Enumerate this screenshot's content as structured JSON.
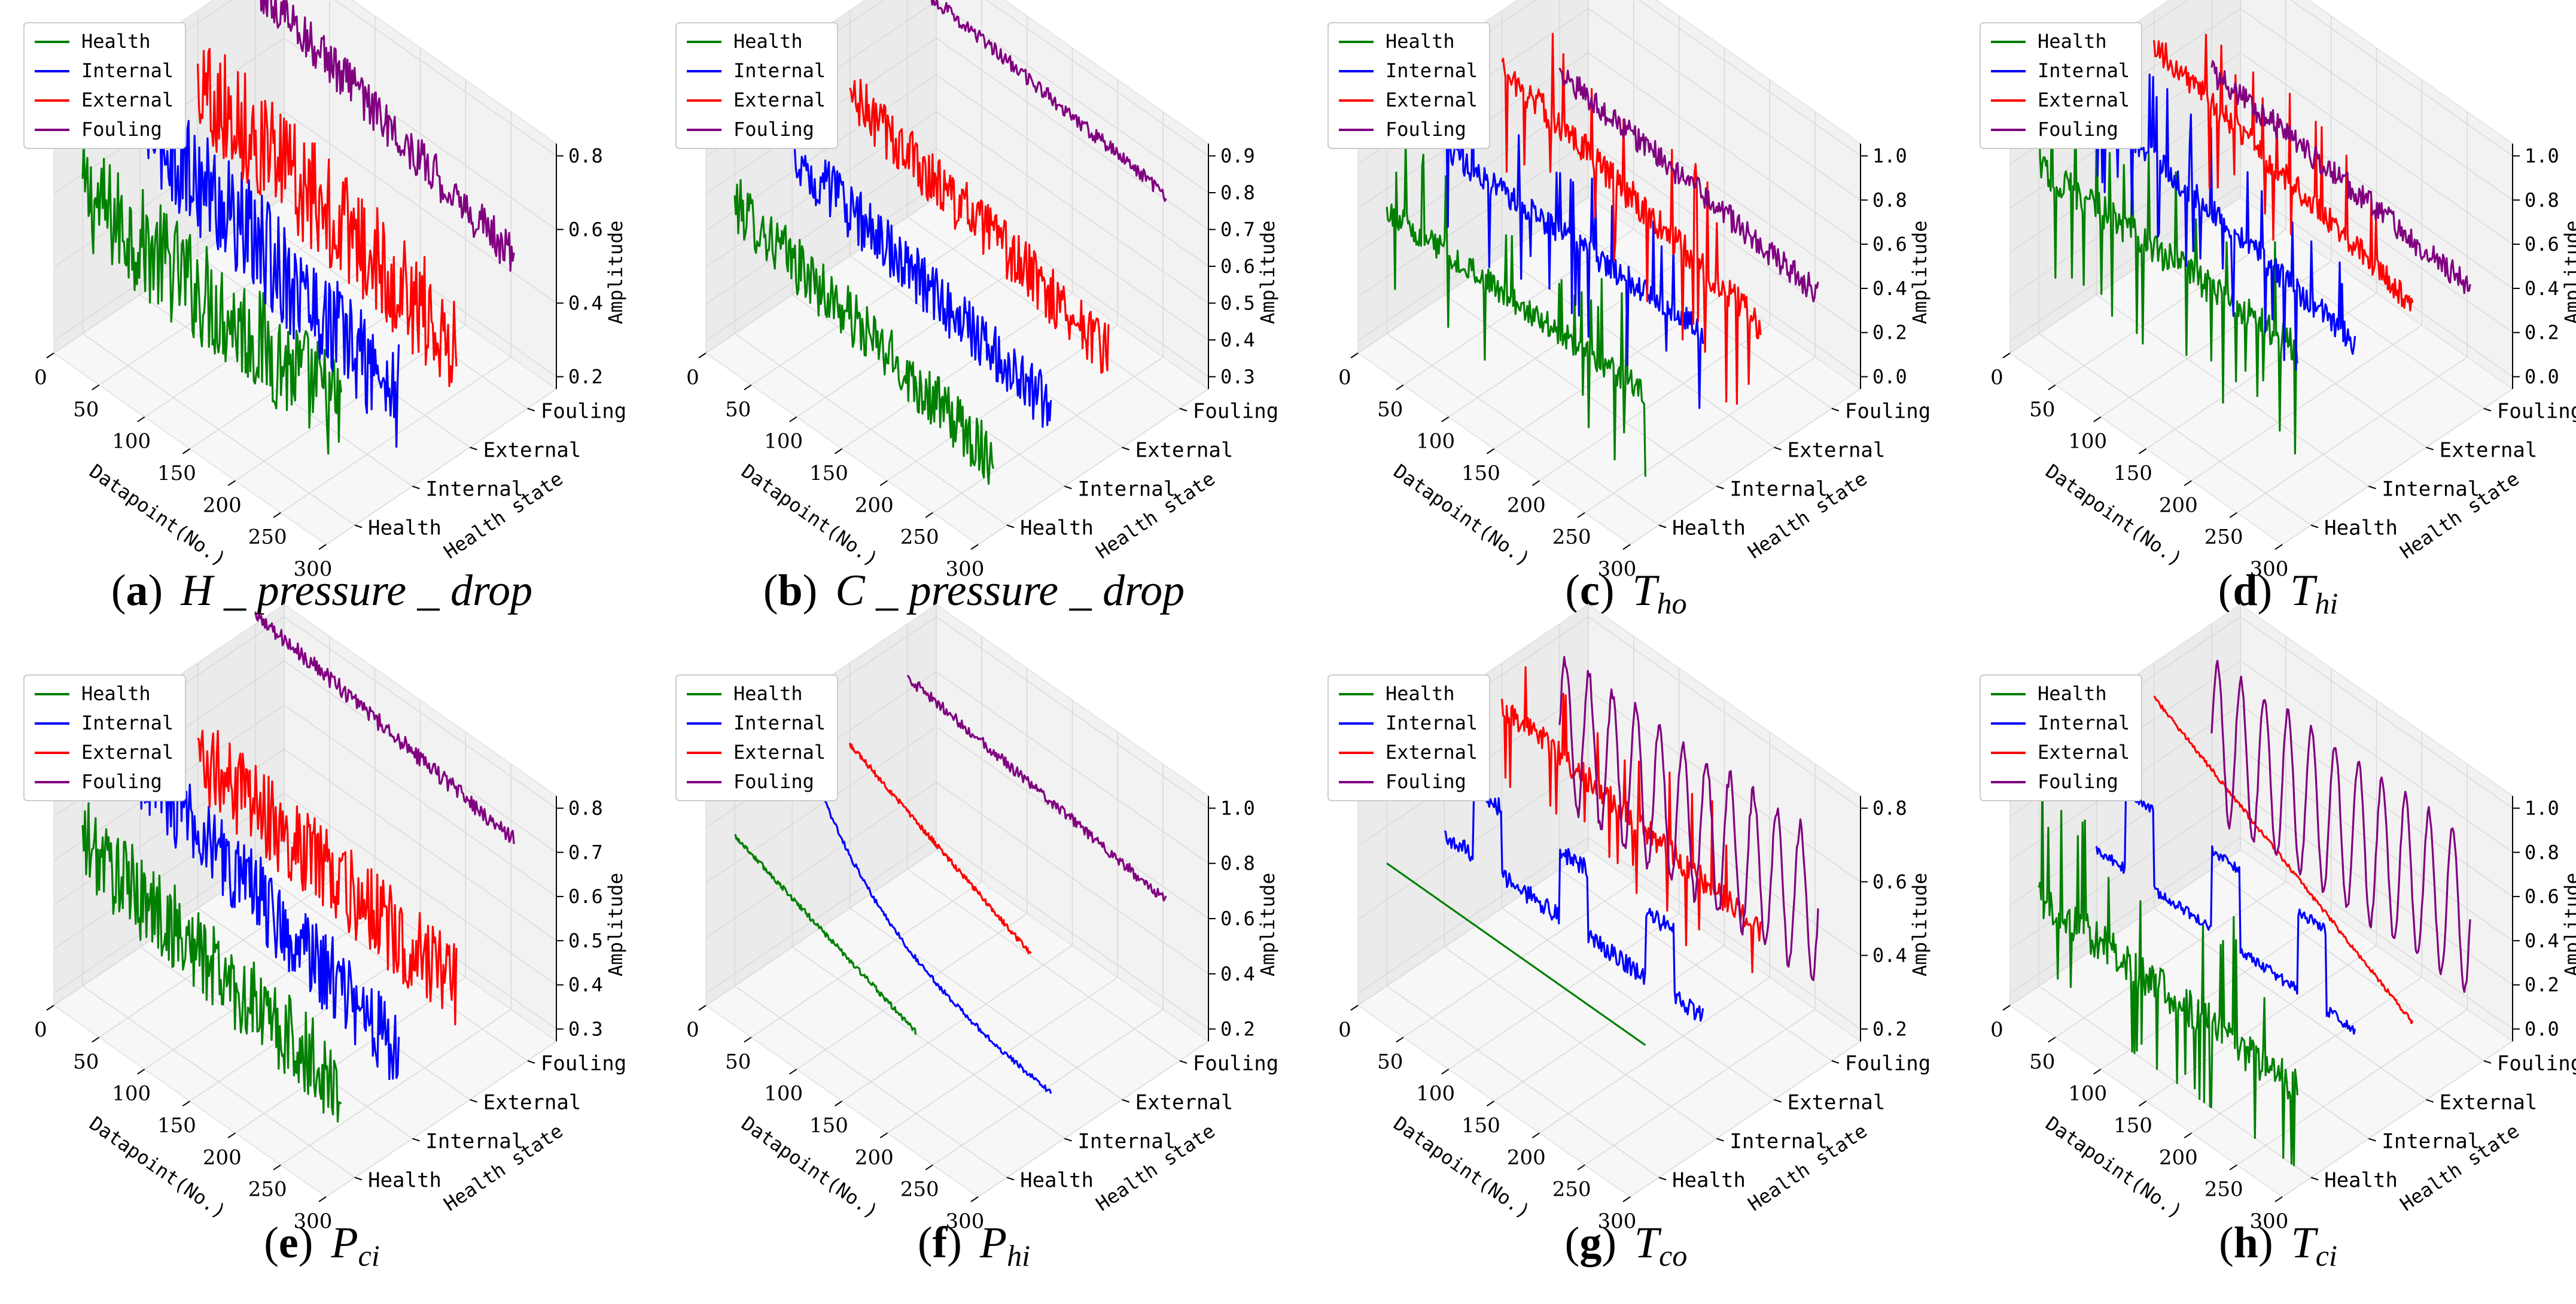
{
  "chart_data": [
    {
      "type": "line3d",
      "label": "a",
      "title_main": "H _ pressure _ drop",
      "title_sub": "",
      "zlim": [
        0.2,
        0.8
      ],
      "zticks": [
        "0.2",
        "0.4",
        "0.6",
        "0.8"
      ],
      "series": [
        {
          "name": "Health",
          "color": "#008000",
          "kind": "noise",
          "start": 0.55,
          "end": 0.45,
          "amp": 0.15,
          "length": 1.0
        },
        {
          "name": "Internal",
          "color": "#0000ff",
          "kind": "noise",
          "start": 0.65,
          "end": 0.38,
          "amp": 0.15,
          "length": 1.0
        },
        {
          "name": "External",
          "color": "#ff0000",
          "kind": "noise",
          "start": 0.65,
          "end": 0.42,
          "amp": 0.15,
          "length": 1.0
        },
        {
          "name": "Fouling",
          "color": "#800080",
          "kind": "noise",
          "start": 0.8,
          "end": 0.55,
          "amp": 0.06,
          "length": 1.0
        }
      ]
    },
    {
      "type": "line3d",
      "label": "b",
      "title_main": "C _ pressure _ drop",
      "title_sub": "",
      "zlim": [
        0.3,
        0.9
      ],
      "zticks": [
        "0.3",
        "0.4",
        "0.5",
        "0.6",
        "0.7",
        "0.8",
        "0.9"
      ],
      "series": [
        {
          "name": "Health",
          "color": "#008000",
          "kind": "noise",
          "start": 0.62,
          "end": 0.42,
          "amp": 0.08,
          "length": 1.0
        },
        {
          "name": "Internal",
          "color": "#0000ff",
          "kind": "noise",
          "start": 0.65,
          "end": 0.45,
          "amp": 0.08,
          "length": 1.0
        },
        {
          "name": "External",
          "color": "#ff0000",
          "kind": "noise",
          "start": 0.7,
          "end": 0.5,
          "amp": 0.08,
          "length": 1.0
        },
        {
          "name": "Fouling",
          "color": "#800080",
          "kind": "noise",
          "start": 0.92,
          "end": 0.82,
          "amp": 0.02,
          "length": 1.0
        }
      ]
    },
    {
      "type": "line3d",
      "label": "c",
      "title_main": "T",
      "title_sub": "ho",
      "zlim": [
        0.0,
        1.0
      ],
      "zticks": [
        "0.0",
        "0.2",
        "0.4",
        "0.6",
        "0.8",
        "1.0"
      ],
      "series": [
        {
          "name": "Health",
          "color": "#008000",
          "kind": "spiky",
          "start": 0.5,
          "end": 0.5,
          "amp": 0.2,
          "length": 1.0
        },
        {
          "name": "Internal",
          "color": "#0000ff",
          "kind": "spiky",
          "start": 0.6,
          "end": 0.6,
          "amp": 0.2,
          "length": 1.0
        },
        {
          "name": "External",
          "color": "#ff0000",
          "kind": "spiky",
          "start": 0.8,
          "end": 0.45,
          "amp": 0.25,
          "length": 1.0
        },
        {
          "name": "Fouling",
          "color": "#800080",
          "kind": "noise",
          "start": 0.6,
          "end": 0.42,
          "amp": 0.06,
          "length": 1.0
        }
      ]
    },
    {
      "type": "line3d",
      "label": "d",
      "title_main": "T",
      "title_sub": "hi",
      "zlim": [
        0.0,
        1.0
      ],
      "zticks": [
        "0.0",
        "0.2",
        "0.4",
        "0.6",
        "0.8",
        "1.0"
      ],
      "series": [
        {
          "name": "Health",
          "color": "#008000",
          "kind": "spiky",
          "start": 0.7,
          "end": 0.7,
          "amp": 0.25,
          "length": 1.0
        },
        {
          "name": "Internal",
          "color": "#0000ff",
          "kind": "spiky",
          "start": 0.8,
          "end": 0.55,
          "amp": 0.2,
          "length": 1.0
        },
        {
          "name": "External",
          "color": "#ff0000",
          "kind": "spiky",
          "start": 0.9,
          "end": 0.55,
          "amp": 0.2,
          "length": 1.0
        },
        {
          "name": "Fouling",
          "color": "#800080",
          "kind": "noise",
          "start": 0.6,
          "end": 0.45,
          "amp": 0.06,
          "length": 1.0
        }
      ]
    },
    {
      "type": "line3d",
      "label": "e",
      "title_main": "P",
      "title_sub": "ci",
      "zlim": [
        0.3,
        0.8
      ],
      "zticks": [
        "0.3",
        "0.4",
        "0.5",
        "0.6",
        "0.7",
        "0.8"
      ],
      "series": [
        {
          "name": "Health",
          "color": "#008000",
          "kind": "noise",
          "start": 0.6,
          "end": 0.45,
          "amp": 0.1,
          "length": 1.0
        },
        {
          "name": "Internal",
          "color": "#0000ff",
          "kind": "noise",
          "start": 0.68,
          "end": 0.45,
          "amp": 0.1,
          "length": 1.0
        },
        {
          "name": "External",
          "color": "#ff0000",
          "kind": "noise",
          "start": 0.62,
          "end": 0.5,
          "amp": 0.1,
          "length": 1.0
        },
        {
          "name": "Fouling",
          "color": "#800080",
          "kind": "noise",
          "start": 0.85,
          "end": 0.75,
          "amp": 0.02,
          "length": 1.0
        }
      ]
    },
    {
      "type": "line3d",
      "label": "f",
      "title_main": "P",
      "title_sub": "hi",
      "zlim": [
        0.2,
        1.0
      ],
      "zticks": [
        "0.2",
        "0.4",
        "0.6",
        "0.8",
        "1.0"
      ],
      "series": [
        {
          "name": "Health",
          "color": "#008000",
          "kind": "smooth",
          "start": 0.7,
          "end": 0.45,
          "amp": 0.01,
          "length": 0.7
        },
        {
          "name": "Internal",
          "color": "#0000ff",
          "kind": "decay",
          "start": 1.0,
          "end": 0.25,
          "amp": 0.01,
          "length": 1.0
        },
        {
          "name": "External",
          "color": "#ff0000",
          "kind": "smooth",
          "start": 0.75,
          "end": 0.45,
          "amp": 0.01,
          "length": 0.7
        },
        {
          "name": "Fouling",
          "color": "#800080",
          "kind": "noise",
          "start": 0.85,
          "end": 0.7,
          "amp": 0.02,
          "length": 1.0
        }
      ]
    },
    {
      "type": "line3d",
      "label": "g",
      "title_main": "T",
      "title_sub": "co",
      "zlim": [
        0.2,
        0.8
      ],
      "zticks": [
        "0.2",
        "0.4",
        "0.6",
        "0.8"
      ],
      "series": [
        {
          "name": "Health",
          "color": "#008000",
          "kind": "smooth",
          "start": 0.5,
          "end": 0.5,
          "amp": 0.0,
          "length": 1.0
        },
        {
          "name": "Internal",
          "color": "#0000ff",
          "kind": "steps",
          "start": 0.5,
          "end": 0.5,
          "amp": 0.15,
          "length": 1.0
        },
        {
          "name": "External",
          "color": "#ff0000",
          "kind": "spiky",
          "start": 0.72,
          "end": 0.6,
          "amp": 0.12,
          "length": 1.0
        },
        {
          "name": "Fouling",
          "color": "#800080",
          "kind": "periodic",
          "start": 0.55,
          "end": 0.55,
          "amp": 0.2,
          "length": 1.0
        }
      ]
    },
    {
      "type": "line3d",
      "label": "h",
      "title_main": "T",
      "title_sub": "ci",
      "zlim": [
        0.0,
        1.0
      ],
      "zticks": [
        "0.0",
        "0.2",
        "0.4",
        "0.6",
        "0.8",
        "1.0"
      ],
      "series": [
        {
          "name": "Health",
          "color": "#008000",
          "kind": "spiky",
          "start": 0.35,
          "end": 0.3,
          "amp": 0.3,
          "length": 1.0
        },
        {
          "name": "Internal",
          "color": "#0000ff",
          "kind": "steps",
          "start": 0.45,
          "end": 0.45,
          "amp": 0.3,
          "length": 1.0
        },
        {
          "name": "External",
          "color": "#ff0000",
          "kind": "smooth",
          "start": 0.9,
          "end": 0.25,
          "amp": 0.01,
          "length": 1.0
        },
        {
          "name": "Fouling",
          "color": "#800080",
          "kind": "periodic",
          "start": 0.55,
          "end": 0.55,
          "amp": 0.35,
          "length": 1.0
        }
      ]
    }
  ],
  "axes": {
    "x_label": "Datapoint(No.)",
    "x_ticks": [
      "0",
      "50",
      "100",
      "150",
      "200",
      "250",
      "300"
    ],
    "y_label": "Health state",
    "y_ticks": [
      "Health",
      "Internal",
      "External",
      "Fouling"
    ],
    "z_label": "Amplitude"
  }
}
